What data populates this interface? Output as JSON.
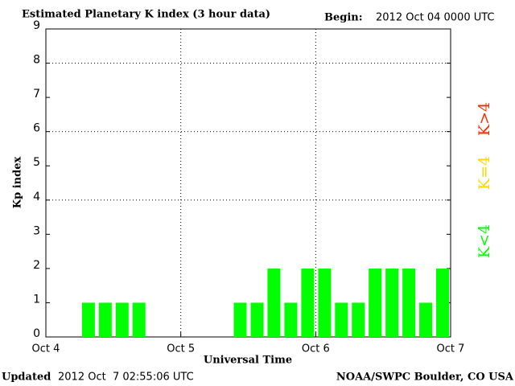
{
  "chart_data": {
    "type": "bar",
    "title": "Estimated Planetary K index (3 hour data)",
    "begin_label": "Begin:",
    "begin": "2012 Oct 04 0000 UTC",
    "ylabel": "Kp index",
    "xlabel": "Universal Time",
    "values": [
      0,
      0,
      1,
      1,
      1,
      1,
      0,
      0,
      0,
      0,
      0,
      1,
      1,
      2,
      1,
      2,
      2,
      1,
      1,
      2,
      2,
      2,
      1,
      2
    ],
    "color": "#00ff00",
    "xlim": [
      0,
      3
    ],
    "xticks": [
      {
        "value": 0,
        "label": "Oct 4"
      },
      {
        "value": 1,
        "label": "Oct 5"
      },
      {
        "value": 2,
        "label": "Oct 6"
      },
      {
        "value": 3,
        "label": "Oct 7"
      }
    ],
    "ylim": [
      0,
      9
    ],
    "yticks": [
      0,
      1,
      2,
      3,
      4,
      5,
      6,
      7,
      8,
      9
    ],
    "grid_yticks": [
      4,
      6,
      8
    ],
    "grid_xticks": [
      1,
      2
    ],
    "legend": [
      {
        "label": "K<4",
        "color": "#00ff00"
      },
      {
        "label": "K=4",
        "color": "#ffd700"
      },
      {
        "label": "K>4",
        "color": "#ff2a00"
      }
    ],
    "updated_label": "Updated",
    "updated": "2012 Oct  7 02:55:06 UTC",
    "source": "NOAA/SWPC Boulder, CO USA"
  }
}
